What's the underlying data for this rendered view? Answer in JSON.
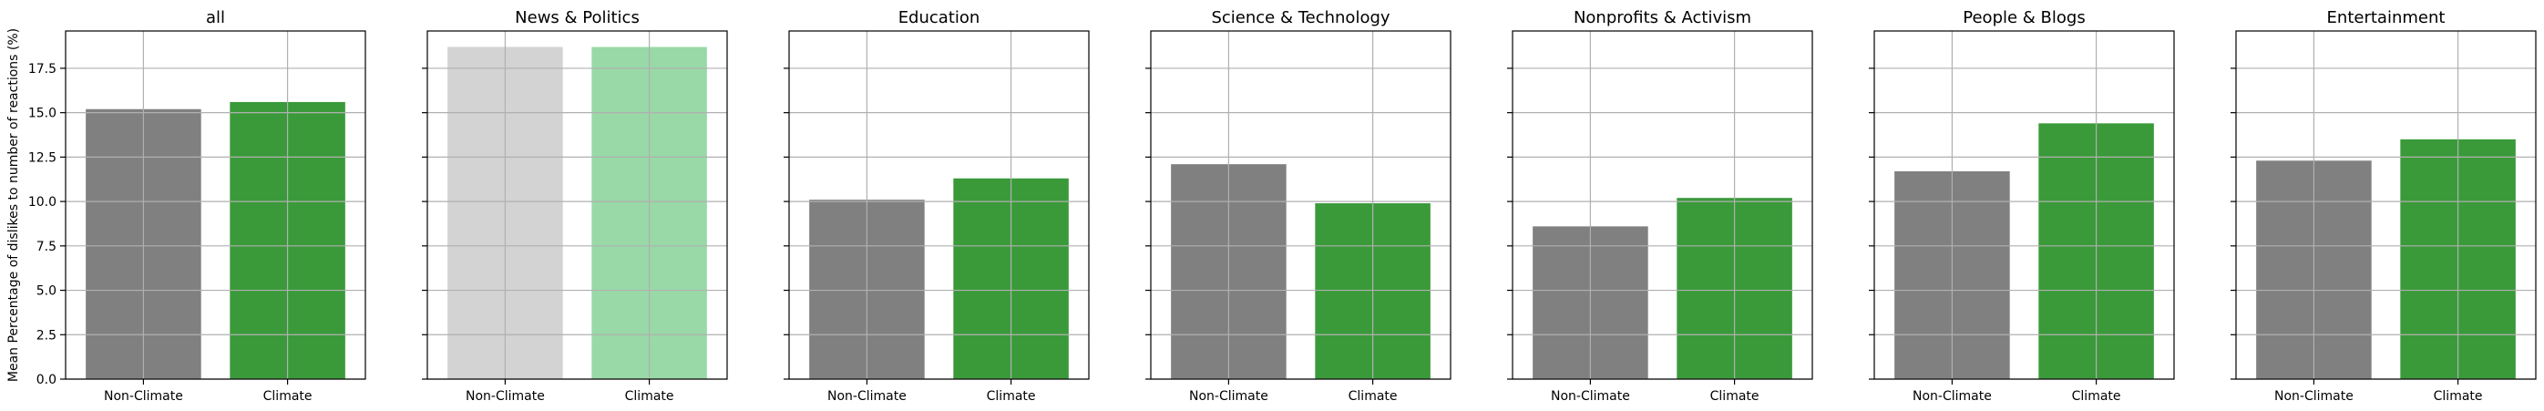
{
  "figure": {
    "ylabel": "Mean Percentage of dislikes to number of reactions (%)"
  },
  "chart_data": [
    {
      "type": "bar",
      "title": "all",
      "categories": [
        "Non-Climate",
        "Climate"
      ],
      "values": [
        15.2,
        15.6
      ],
      "colors": [
        "#808080",
        "#3a9a3a"
      ],
      "ylim": [
        0,
        19.6
      ],
      "yticks": [
        "0.0",
        "2.5",
        "5.0",
        "7.5",
        "10.0",
        "12.5",
        "15.0",
        "17.5"
      ],
      "grid": true
    },
    {
      "type": "bar",
      "title": "News & Politics",
      "categories": [
        "Non-Climate",
        "Climate"
      ],
      "values": [
        18.7,
        18.7
      ],
      "colors": [
        "#d3d3d3",
        "#98d9a7"
      ],
      "ylim": [
        0,
        19.6
      ],
      "grid": true
    },
    {
      "type": "bar",
      "title": "Education",
      "categories": [
        "Non-Climate",
        "Climate"
      ],
      "values": [
        10.1,
        11.3
      ],
      "colors": [
        "#808080",
        "#3a9a3a"
      ],
      "ylim": [
        0,
        19.6
      ],
      "grid": true
    },
    {
      "type": "bar",
      "title": "Science & Technology",
      "categories": [
        "Non-Climate",
        "Climate"
      ],
      "values": [
        12.1,
        9.9
      ],
      "colors": [
        "#808080",
        "#3a9a3a"
      ],
      "ylim": [
        0,
        19.6
      ],
      "grid": true
    },
    {
      "type": "bar",
      "title": "Nonprofits & Activism",
      "categories": [
        "Non-Climate",
        "Climate"
      ],
      "values": [
        8.6,
        10.2
      ],
      "colors": [
        "#808080",
        "#3a9a3a"
      ],
      "ylim": [
        0,
        19.6
      ],
      "grid": true
    },
    {
      "type": "bar",
      "title": "People & Blogs",
      "categories": [
        "Non-Climate",
        "Climate"
      ],
      "values": [
        11.7,
        14.4
      ],
      "colors": [
        "#808080",
        "#3a9a3a"
      ],
      "ylim": [
        0,
        19.6
      ],
      "grid": true
    },
    {
      "type": "bar",
      "title": "Entertainment",
      "categories": [
        "Non-Climate",
        "Climate"
      ],
      "values": [
        12.3,
        13.5
      ],
      "colors": [
        "#808080",
        "#3a9a3a"
      ],
      "ylim": [
        0,
        19.6
      ],
      "grid": true
    }
  ]
}
